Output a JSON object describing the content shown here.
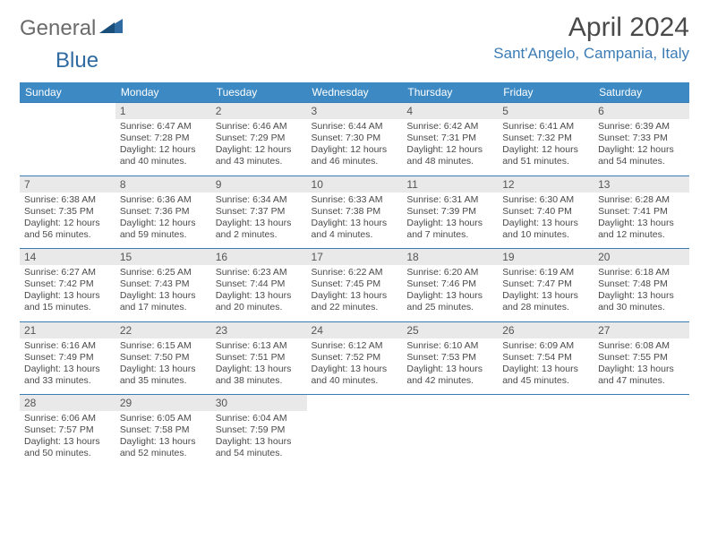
{
  "logo": {
    "general": "General",
    "blue": "Blue"
  },
  "title": "April 2024",
  "location": "Sant'Angelo, Campania, Italy",
  "colors": {
    "header_bg": "#3c89c3",
    "header_text": "#ffffff",
    "accent": "#3c7cb5",
    "daynum_bg": "#e9e9e9",
    "body_text": "#4a4a4a",
    "logo_gray": "#6b6b6b"
  },
  "weekdays": [
    "Sunday",
    "Monday",
    "Tuesday",
    "Wednesday",
    "Thursday",
    "Friday",
    "Saturday"
  ],
  "weeks": [
    [
      null,
      {
        "n": "1",
        "sr": "Sunrise: 6:47 AM",
        "ss": "Sunset: 7:28 PM",
        "d1": "Daylight: 12 hours",
        "d2": "and 40 minutes."
      },
      {
        "n": "2",
        "sr": "Sunrise: 6:46 AM",
        "ss": "Sunset: 7:29 PM",
        "d1": "Daylight: 12 hours",
        "d2": "and 43 minutes."
      },
      {
        "n": "3",
        "sr": "Sunrise: 6:44 AM",
        "ss": "Sunset: 7:30 PM",
        "d1": "Daylight: 12 hours",
        "d2": "and 46 minutes."
      },
      {
        "n": "4",
        "sr": "Sunrise: 6:42 AM",
        "ss": "Sunset: 7:31 PM",
        "d1": "Daylight: 12 hours",
        "d2": "and 48 minutes."
      },
      {
        "n": "5",
        "sr": "Sunrise: 6:41 AM",
        "ss": "Sunset: 7:32 PM",
        "d1": "Daylight: 12 hours",
        "d2": "and 51 minutes."
      },
      {
        "n": "6",
        "sr": "Sunrise: 6:39 AM",
        "ss": "Sunset: 7:33 PM",
        "d1": "Daylight: 12 hours",
        "d2": "and 54 minutes."
      }
    ],
    [
      {
        "n": "7",
        "sr": "Sunrise: 6:38 AM",
        "ss": "Sunset: 7:35 PM",
        "d1": "Daylight: 12 hours",
        "d2": "and 56 minutes."
      },
      {
        "n": "8",
        "sr": "Sunrise: 6:36 AM",
        "ss": "Sunset: 7:36 PM",
        "d1": "Daylight: 12 hours",
        "d2": "and 59 minutes."
      },
      {
        "n": "9",
        "sr": "Sunrise: 6:34 AM",
        "ss": "Sunset: 7:37 PM",
        "d1": "Daylight: 13 hours",
        "d2": "and 2 minutes."
      },
      {
        "n": "10",
        "sr": "Sunrise: 6:33 AM",
        "ss": "Sunset: 7:38 PM",
        "d1": "Daylight: 13 hours",
        "d2": "and 4 minutes."
      },
      {
        "n": "11",
        "sr": "Sunrise: 6:31 AM",
        "ss": "Sunset: 7:39 PM",
        "d1": "Daylight: 13 hours",
        "d2": "and 7 minutes."
      },
      {
        "n": "12",
        "sr": "Sunrise: 6:30 AM",
        "ss": "Sunset: 7:40 PM",
        "d1": "Daylight: 13 hours",
        "d2": "and 10 minutes."
      },
      {
        "n": "13",
        "sr": "Sunrise: 6:28 AM",
        "ss": "Sunset: 7:41 PM",
        "d1": "Daylight: 13 hours",
        "d2": "and 12 minutes."
      }
    ],
    [
      {
        "n": "14",
        "sr": "Sunrise: 6:27 AM",
        "ss": "Sunset: 7:42 PM",
        "d1": "Daylight: 13 hours",
        "d2": "and 15 minutes."
      },
      {
        "n": "15",
        "sr": "Sunrise: 6:25 AM",
        "ss": "Sunset: 7:43 PM",
        "d1": "Daylight: 13 hours",
        "d2": "and 17 minutes."
      },
      {
        "n": "16",
        "sr": "Sunrise: 6:23 AM",
        "ss": "Sunset: 7:44 PM",
        "d1": "Daylight: 13 hours",
        "d2": "and 20 minutes."
      },
      {
        "n": "17",
        "sr": "Sunrise: 6:22 AM",
        "ss": "Sunset: 7:45 PM",
        "d1": "Daylight: 13 hours",
        "d2": "and 22 minutes."
      },
      {
        "n": "18",
        "sr": "Sunrise: 6:20 AM",
        "ss": "Sunset: 7:46 PM",
        "d1": "Daylight: 13 hours",
        "d2": "and 25 minutes."
      },
      {
        "n": "19",
        "sr": "Sunrise: 6:19 AM",
        "ss": "Sunset: 7:47 PM",
        "d1": "Daylight: 13 hours",
        "d2": "and 28 minutes."
      },
      {
        "n": "20",
        "sr": "Sunrise: 6:18 AM",
        "ss": "Sunset: 7:48 PM",
        "d1": "Daylight: 13 hours",
        "d2": "and 30 minutes."
      }
    ],
    [
      {
        "n": "21",
        "sr": "Sunrise: 6:16 AM",
        "ss": "Sunset: 7:49 PM",
        "d1": "Daylight: 13 hours",
        "d2": "and 33 minutes."
      },
      {
        "n": "22",
        "sr": "Sunrise: 6:15 AM",
        "ss": "Sunset: 7:50 PM",
        "d1": "Daylight: 13 hours",
        "d2": "and 35 minutes."
      },
      {
        "n": "23",
        "sr": "Sunrise: 6:13 AM",
        "ss": "Sunset: 7:51 PM",
        "d1": "Daylight: 13 hours",
        "d2": "and 38 minutes."
      },
      {
        "n": "24",
        "sr": "Sunrise: 6:12 AM",
        "ss": "Sunset: 7:52 PM",
        "d1": "Daylight: 13 hours",
        "d2": "and 40 minutes."
      },
      {
        "n": "25",
        "sr": "Sunrise: 6:10 AM",
        "ss": "Sunset: 7:53 PM",
        "d1": "Daylight: 13 hours",
        "d2": "and 42 minutes."
      },
      {
        "n": "26",
        "sr": "Sunrise: 6:09 AM",
        "ss": "Sunset: 7:54 PM",
        "d1": "Daylight: 13 hours",
        "d2": "and 45 minutes."
      },
      {
        "n": "27",
        "sr": "Sunrise: 6:08 AM",
        "ss": "Sunset: 7:55 PM",
        "d1": "Daylight: 13 hours",
        "d2": "and 47 minutes."
      }
    ],
    [
      {
        "n": "28",
        "sr": "Sunrise: 6:06 AM",
        "ss": "Sunset: 7:57 PM",
        "d1": "Daylight: 13 hours",
        "d2": "and 50 minutes."
      },
      {
        "n": "29",
        "sr": "Sunrise: 6:05 AM",
        "ss": "Sunset: 7:58 PM",
        "d1": "Daylight: 13 hours",
        "d2": "and 52 minutes."
      },
      {
        "n": "30",
        "sr": "Sunrise: 6:04 AM",
        "ss": "Sunset: 7:59 PM",
        "d1": "Daylight: 13 hours",
        "d2": "and 54 minutes."
      },
      null,
      null,
      null,
      null
    ]
  ]
}
